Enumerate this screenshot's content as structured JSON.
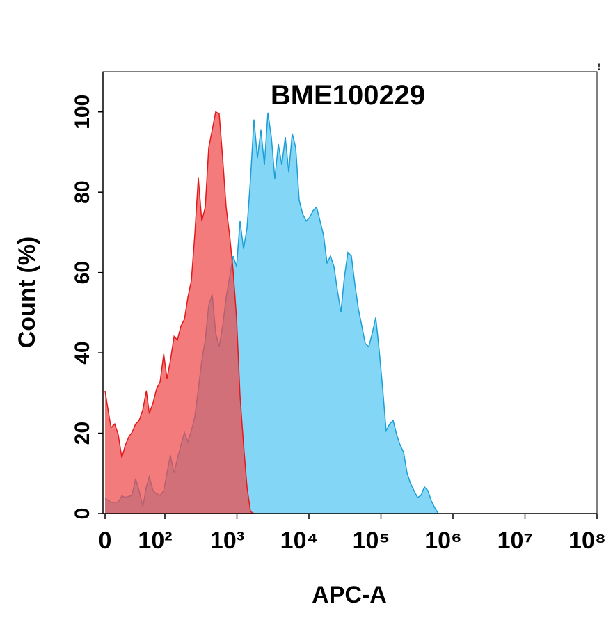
{
  "chart_data": {
    "type": "area",
    "title": "BME100229",
    "corner_mark": "!",
    "x_label": "APC-A",
    "y_label": "Count  (%)",
    "xscale": "biexponential",
    "xlim": [
      0,
      100000000
    ],
    "xticks": [
      0,
      {
        "value": 100,
        "label": "10²"
      },
      {
        "value": 1000,
        "label": "10³"
      },
      {
        "value": 10000,
        "label": "10⁴"
      },
      {
        "value": 100000,
        "label": "10⁵"
      },
      {
        "value": 1000000,
        "label": "10⁶"
      },
      {
        "value": 10000000,
        "label": "10⁷"
      },
      {
        "value": 100000000,
        "label": "10⁸"
      }
    ],
    "ylim": [
      0,
      110
    ],
    "yticks": [
      0,
      20,
      40,
      60,
      80,
      100
    ],
    "series": [
      {
        "color": "#1a9fd6",
        "fill": "#84d6f6",
        "x": [
          0,
          10,
          22,
          28,
          34,
          45,
          51,
          57,
          63,
          69,
          74,
          80,
          86,
          92,
          98,
          107,
          119,
          134,
          149,
          167,
          187,
          208,
          233,
          260,
          291,
          325,
          363,
          406,
          454,
          507,
          567,
          634,
          708,
          792,
          885,
          989,
          1105,
          1235,
          1380,
          1543,
          1725,
          1928,
          2155,
          2408,
          2692,
          3008,
          3362,
          3758,
          4200,
          4694,
          5247,
          5864,
          6554,
          7325,
          8187,
          9150,
          10227,
          11430,
          12775,
          14278,
          15957,
          17834,
          19932,
          22277,
          24898,
          27827,
          31101,
          34760,
          38850,
          43420,
          48530,
          54240,
          60620,
          67750,
          75720,
          84630,
          94590,
          105700,
          118100,
          132000,
          147600,
          164900,
          184300,
          206000,
          230300,
          257400,
          287600,
          321500,
          359300,
          401600,
          448800,
          501600,
          560700,
          626600
        ],
        "values": [
          3.8,
          2.8,
          2.8,
          4.4,
          4.0,
          4.5,
          8.7,
          5.7,
          1.7,
          6.6,
          9.2,
          5.7,
          4.9,
          4.5,
          5.7,
          10.1,
          14.5,
          10.1,
          13.6,
          17.1,
          20.2,
          17.9,
          20.6,
          24.0,
          31.0,
          38.0,
          43.2,
          51.9,
          54.5,
          44.9,
          41.5,
          46.7,
          53.7,
          58.9,
          64.1,
          61.5,
          72.8,
          65.9,
          71.1,
          83.3,
          98.1,
          88.5,
          95.5,
          86.8,
          99.8,
          93.7,
          83.3,
          92.0,
          86.8,
          93.7,
          85.0,
          94.6,
          91.1,
          78.0,
          74.6,
          72.8,
          73.7,
          75.4,
          76.3,
          72.8,
          69.3,
          62.4,
          64.1,
          61.5,
          55.4,
          50.2,
          58.9,
          65.0,
          64.1,
          57.1,
          51.0,
          46.7,
          42.3,
          41.5,
          44.9,
          48.8,
          40.6,
          31.0,
          20.6,
          22.3,
          23.2,
          19.7,
          17.1,
          15.3,
          10.1,
          7.5,
          5.7,
          4.0,
          4.5,
          6.6,
          5.7,
          3.1,
          1.4,
          0
        ]
      },
      {
        "color": "#e31a1c",
        "fill": "#f04848",
        "x": [
          0,
          5,
          10,
          16,
          22,
          28,
          34,
          40,
          45,
          51,
          57,
          63,
          69,
          74,
          80,
          86,
          92,
          98,
          107,
          119,
          134,
          149,
          167,
          187,
          208,
          233,
          260,
          291,
          325,
          363,
          406,
          454,
          507,
          567,
          634,
          708,
          792,
          885,
          989,
          1105,
          1235,
          1380,
          1543,
          1725
        ],
        "values": [
          30.5,
          25.8,
          21.4,
          22.3,
          19.7,
          13.9,
          17.1,
          19.2,
          20.2,
          22.3,
          23.2,
          25.8,
          30.5,
          24.9,
          27.5,
          31.0,
          32.8,
          39.7,
          33.6,
          38.0,
          44.1,
          43.2,
          46.7,
          48.4,
          53.7,
          58.0,
          69.3,
          83.6,
          72.8,
          76.3,
          91.1,
          95.5,
          100.0,
          99.5,
          88.5,
          76.3,
          69.3,
          60.6,
          48.4,
          29.3,
          17.1,
          6.6,
          0.5,
          0
        ]
      }
    ]
  }
}
